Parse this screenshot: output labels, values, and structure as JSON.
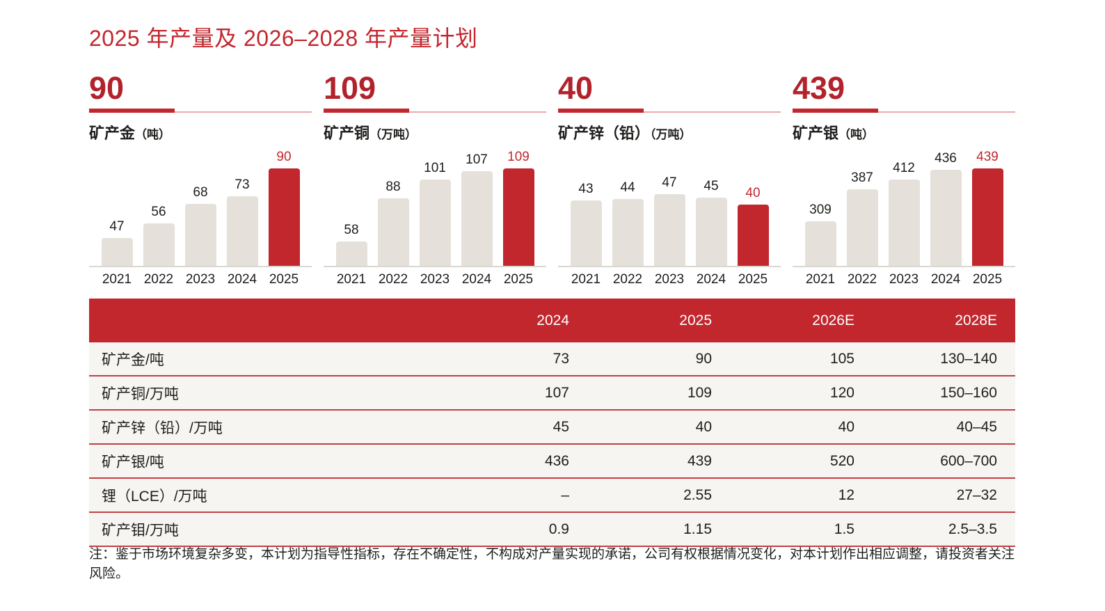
{
  "title": "2025 年产量及 2026–2028 年产量计划",
  "note": "注：鉴于市场环境复杂多变，本计划为指导性指标，存在不确定性，不构成对产量实现的承诺，公司有权根据情况变化，对本计划作出相应调整，请投资者关注风险。",
  "colors": {
    "brand_red": "#c1272d",
    "headline_red": "#b2222b",
    "light_red_rule": "#eaa9ac",
    "bar_grey": "#e5e1da",
    "row_background": "#f7f5f2",
    "row_separator_red": "#c23e44",
    "baseline_grey": "#dbd7d1",
    "text_black": "#1d1d1b",
    "header_text_white": "#ffffff"
  },
  "chart_data": [
    {
      "type": "bar",
      "headline": "90",
      "label": "矿产金",
      "unit": "（吨）",
      "title": "矿产金（吨）",
      "categories": [
        "2021",
        "2022",
        "2023",
        "2024",
        "2025"
      ],
      "values": [
        47,
        56,
        68,
        73,
        90
      ],
      "highlight_index": 4,
      "ylim": [
        30,
        90
      ],
      "grid": false,
      "legend": false
    },
    {
      "type": "bar",
      "headline": "109",
      "label": "矿产铜",
      "unit": "（万吨）",
      "title": "矿产铜（万吨）",
      "categories": [
        "2021",
        "2022",
        "2023",
        "2024",
        "2025"
      ],
      "values": [
        58,
        88,
        101,
        107,
        109
      ],
      "highlight_index": 4,
      "ylim": [
        41,
        109
      ],
      "grid": false,
      "legend": false
    },
    {
      "type": "bar",
      "headline": "40",
      "label": "矿产锌（铅）",
      "unit": "（万吨）",
      "title": "矿产锌（铅）（万吨）",
      "categories": [
        "2021",
        "2022",
        "2023",
        "2024",
        "2025"
      ],
      "values": [
        43,
        44,
        47,
        45,
        40
      ],
      "highlight_index": 4,
      "ylim": [
        0,
        64
      ],
      "grid": false,
      "legend": false
    },
    {
      "type": "bar",
      "headline": "439",
      "label": "矿产银",
      "unit": "（吨）",
      "title": "矿产银（吨）",
      "categories": [
        "2021",
        "2022",
        "2023",
        "2024",
        "2025"
      ],
      "values": [
        309,
        387,
        412,
        436,
        439
      ],
      "highlight_index": 4,
      "ylim": [
        198,
        439
      ],
      "grid": false,
      "legend": false
    },
    {
      "type": "table",
      "columns": [
        "2024",
        "2025",
        "2026E",
        "2028E"
      ],
      "rows": [
        {
          "label": "矿产金/吨",
          "values": [
            "73",
            "90",
            "105",
            "130–140"
          ]
        },
        {
          "label": "矿产铜/万吨",
          "values": [
            "107",
            "109",
            "120",
            "150–160"
          ]
        },
        {
          "label": "矿产锌（铅）/万吨",
          "values": [
            "45",
            "40",
            "40",
            "40–45"
          ]
        },
        {
          "label": "矿产银/吨",
          "values": [
            "436",
            "439",
            "520",
            "600–700"
          ]
        },
        {
          "label": "锂（LCE）/万吨",
          "values": [
            "–",
            "2.55",
            "12",
            "27–32"
          ]
        },
        {
          "label": "矿产钼/万吨",
          "values": [
            "0.9",
            "1.15",
            "1.5",
            "2.5–3.5"
          ]
        }
      ]
    }
  ]
}
